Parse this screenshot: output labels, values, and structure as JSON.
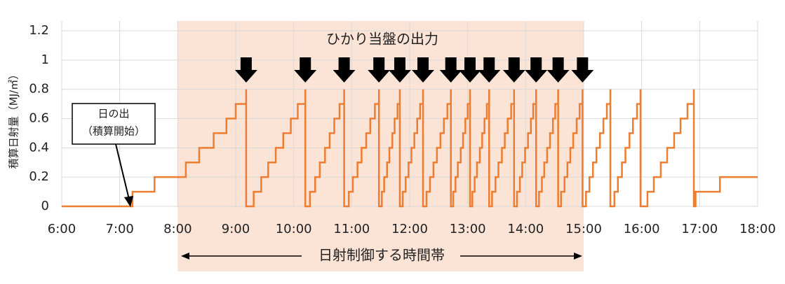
{
  "chart_data": {
    "type": "line",
    "drawstyle": "steps-post",
    "ylabel": "積算日射量（MJ/㎡）",
    "annotation_top": "ひかり当盤の出力",
    "annotation_bottom": "日射制御する時間帯",
    "sunrise": [
      "日の出",
      "（積算開始）"
    ],
    "color": "#ed7d31",
    "grid": true,
    "shade_color": "#fbe3d6",
    "shade_range": [
      8,
      15
    ],
    "xlim": [
      6,
      18
    ],
    "ylim": [
      0,
      1.2
    ],
    "xticks": [
      {
        "value": 6,
        "label": "6:00"
      },
      {
        "value": 7,
        "label": "7:00"
      },
      {
        "value": 8,
        "label": "8:00"
      },
      {
        "value": 9,
        "label": "9:00"
      },
      {
        "value": 10,
        "label": "10:00"
      },
      {
        "value": 11,
        "label": "11:00"
      },
      {
        "value": 12,
        "label": "12:00"
      },
      {
        "value": 13,
        "label": "13:00"
      },
      {
        "value": 14,
        "label": "14:00"
      },
      {
        "value": 15,
        "label": "15:00"
      },
      {
        "value": 16,
        "label": "16:00"
      },
      {
        "value": 17,
        "label": "17:00"
      },
      {
        "value": 18,
        "label": "18:00"
      }
    ],
    "yticks": [
      0,
      0.2,
      0.4,
      0.6,
      0.8,
      1,
      1.2
    ],
    "output_times": [
      9.18,
      10.2,
      10.87,
      11.47,
      11.83,
      12.23,
      12.71,
      13.04,
      13.37,
      13.8,
      14.18,
      14.56,
      14.98
    ],
    "x": [
      6,
      7.22,
      7.6,
      8.14,
      8.37,
      8.62,
      8.84,
      9.0,
      9.18,
      9.18,
      9.31,
      9.44,
      9.56,
      9.69,
      9.82,
      9.95,
      10.07,
      10.2,
      10.2,
      10.28,
      10.37,
      10.45,
      10.54,
      10.62,
      10.7,
      10.79,
      10.87,
      10.87,
      10.95,
      11.02,
      11.1,
      11.17,
      11.25,
      11.32,
      11.4,
      11.47,
      11.47,
      11.52,
      11.56,
      11.61,
      11.65,
      11.7,
      11.74,
      11.79,
      11.83,
      11.83,
      11.88,
      11.93,
      11.98,
      12.03,
      12.08,
      12.13,
      12.18,
      12.23,
      12.23,
      12.29,
      12.35,
      12.41,
      12.47,
      12.53,
      12.59,
      12.65,
      12.71,
      12.71,
      12.75,
      12.79,
      12.83,
      12.88,
      12.92,
      12.96,
      13.0,
      13.04,
      13.04,
      13.08,
      13.12,
      13.16,
      13.21,
      13.25,
      13.29,
      13.33,
      13.37,
      13.37,
      13.42,
      13.48,
      13.53,
      13.59,
      13.64,
      13.69,
      13.75,
      13.8,
      13.8,
      13.85,
      13.9,
      13.94,
      13.99,
      14.04,
      14.09,
      14.13,
      14.18,
      14.18,
      14.23,
      14.28,
      14.32,
      14.37,
      14.42,
      14.47,
      14.51,
      14.56,
      14.56,
      14.61,
      14.67,
      14.72,
      14.77,
      14.82,
      14.88,
      14.93,
      14.98,
      14.98,
      15.04,
      15.1,
      15.16,
      15.22,
      15.28,
      15.34,
      15.4,
      15.46,
      15.46,
      15.53,
      15.59,
      15.66,
      15.72,
      15.79,
      15.85,
      15.92,
      15.98,
      15.98,
      16.1,
      16.21,
      16.33,
      16.44,
      16.56,
      16.67,
      16.79,
      16.9,
      16.9,
      16.93,
      17.35,
      18
    ],
    "values": [
      0,
      0.1,
      0.2,
      0.3,
      0.4,
      0.5,
      0.6,
      0.7,
      0.8,
      0,
      0.1,
      0.2,
      0.3,
      0.4,
      0.5,
      0.6,
      0.7,
      0.8,
      0,
      0.1,
      0.2,
      0.3,
      0.4,
      0.5,
      0.6,
      0.7,
      0.8,
      0,
      0.1,
      0.2,
      0.3,
      0.4,
      0.5,
      0.6,
      0.7,
      0.8,
      0,
      0.1,
      0.2,
      0.3,
      0.4,
      0.5,
      0.6,
      0.7,
      0.8,
      0,
      0.1,
      0.2,
      0.3,
      0.4,
      0.5,
      0.6,
      0.7,
      0.8,
      0,
      0.1,
      0.2,
      0.3,
      0.4,
      0.5,
      0.6,
      0.7,
      0.8,
      0,
      0.1,
      0.2,
      0.3,
      0.4,
      0.5,
      0.6,
      0.7,
      0.8,
      0,
      0.1,
      0.2,
      0.3,
      0.4,
      0.5,
      0.6,
      0.7,
      0.8,
      0,
      0.1,
      0.2,
      0.3,
      0.4,
      0.5,
      0.6,
      0.7,
      0.8,
      0,
      0.1,
      0.2,
      0.3,
      0.4,
      0.5,
      0.6,
      0.7,
      0.8,
      0,
      0.1,
      0.2,
      0.3,
      0.4,
      0.5,
      0.6,
      0.7,
      0.8,
      0,
      0.1,
      0.2,
      0.3,
      0.4,
      0.5,
      0.6,
      0.7,
      0.8,
      0,
      0.1,
      0.2,
      0.3,
      0.4,
      0.5,
      0.6,
      0.7,
      0.8,
      0,
      0.1,
      0.2,
      0.3,
      0.4,
      0.5,
      0.6,
      0.7,
      0.8,
      0,
      0.1,
      0.2,
      0.3,
      0.4,
      0.5,
      0.6,
      0.7,
      0.8,
      0,
      0.1,
      0.2,
      0.2
    ]
  }
}
